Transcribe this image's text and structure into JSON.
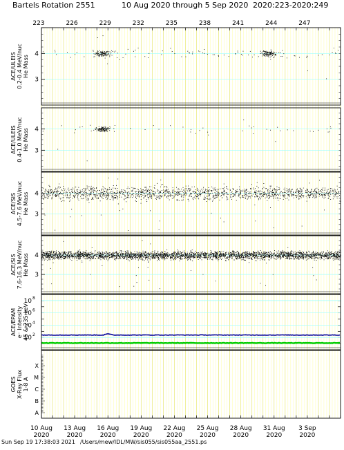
{
  "header": {
    "rotation": "Bartels Rotation 2551",
    "date_range": "10 Aug 2020 through 5 Sep 2020",
    "doy_range": "2020:223-2020:249"
  },
  "footer": {
    "timestamp": "Sun Sep 19 17:38:03 2021",
    "path": "/Users/mew/IDL/MW/sis055/sis055aa_2551.ps"
  },
  "colors": {
    "day_grid": "#ffff99",
    "h_grid": "#99ffff",
    "blue_series": "#000099",
    "green_series": "#00cc00",
    "points": "#000000"
  },
  "chart_data": {
    "type": "scatter",
    "x_range": [
      "2020-08-10",
      "2020-09-06"
    ],
    "doy_ticks": [
      "223",
      "226",
      "229",
      "232",
      "235",
      "238",
      "241",
      "244",
      "247"
    ],
    "date_ticks": [
      {
        "day": "10 Aug",
        "year": "2020"
      },
      {
        "day": "13 Aug",
        "year": "2020"
      },
      {
        "day": "16 Aug",
        "year": "2020"
      },
      {
        "day": "19 Aug",
        "year": "2020"
      },
      {
        "day": "22 Aug",
        "year": "2020"
      },
      {
        "day": "25 Aug",
        "year": "2020"
      },
      {
        "day": "28 Aug",
        "year": "2020"
      },
      {
        "day": "31 Aug",
        "year": "2020"
      },
      {
        "day": "3 Sep",
        "year": "2020"
      }
    ],
    "panels": [
      {
        "ylabel": [
          "ACE/ULEIS",
          "0.2-0.4 MeV/nuc",
          "He Mass"
        ],
        "ylim": [
          2,
          5
        ],
        "yticks": [
          "3",
          "4"
        ],
        "cluster_center": 4.0,
        "density": "sparse",
        "dense_days": [
          "2020-08-15",
          "2020-08-30"
        ]
      },
      {
        "ylabel": [
          "ACE/ULEIS",
          "0.4-1.0 MeV/nuc",
          "He Mass"
        ],
        "ylim": [
          2,
          5
        ],
        "yticks": [
          "3",
          "4"
        ],
        "cluster_center": 4.0,
        "density": "very sparse",
        "dense_days": [
          "2020-08-15"
        ]
      },
      {
        "ylabel": [
          "ACE/SIS",
          "4.5-7.6 MeV/nuc",
          "He Mass"
        ],
        "ylim": [
          2,
          5
        ],
        "yticks": [
          "3",
          "4"
        ],
        "cluster_center": 4.0,
        "density": "dense"
      },
      {
        "ylabel": [
          "ACE/SIS",
          "7.6-16.3 MeV/nuc",
          "He Mass"
        ],
        "ylim": [
          2,
          5
        ],
        "yticks": [
          "3",
          "4"
        ],
        "cluster_center": 4.0,
        "density": "very dense"
      },
      {
        "ylabel": [
          "ACE/EPAM",
          "e⁻ Intensity",
          "45 & 235 keV"
        ],
        "ylim_log10": [
          0,
          9
        ],
        "yticks": [
          {
            "base": "10",
            "exp": "2",
            "value": 2
          },
          {
            "base": "10",
            "exp": "4",
            "value": 4
          },
          {
            "base": "10",
            "exp": "6",
            "value": 6
          },
          {
            "base": "10",
            "exp": "8",
            "value": 8
          }
        ],
        "series": [
          {
            "color": "blue",
            "log10_level": 2.4,
            "bump_day": "2020-08-16",
            "bump_log10": 2.6
          },
          {
            "color": "green",
            "log10_level": 1.1
          }
        ]
      },
      {
        "ylabel": [
          "GOES",
          "X-Ray Flux",
          "1-8 A"
        ],
        "yticks": [
          "A",
          "B",
          "C",
          "M",
          "X"
        ],
        "data": "none"
      }
    ]
  }
}
